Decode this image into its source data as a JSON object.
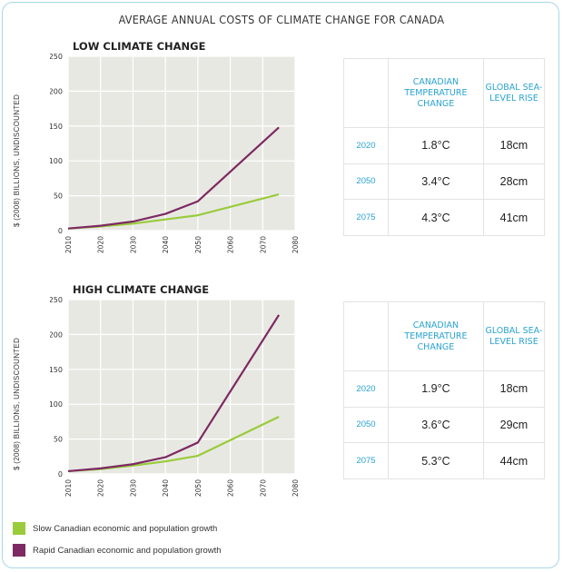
{
  "title": "AVERAGE ANNUAL COSTS OF CLIMATE CHANGE FOR CANADA",
  "y_axis_label": "$ (2008) BILLIONS, UNDISCOUNTED",
  "colors": {
    "slow": "#9acb3c",
    "rapid": "#7d2a62",
    "plot_bg": "#e8e8e3",
    "grid": "#ffffff",
    "accent": "#2aa3d0"
  },
  "legend": {
    "slow": "Slow Canadian economic and population growth",
    "rapid": "Rapid Canadian economic and population growth"
  },
  "chart_data": [
    {
      "type": "line",
      "title": "LOW CLIMATE CHANGE",
      "ylabel": "$ (2008) BILLIONS, UNDISCOUNTED",
      "x_ticks": [
        "2010",
        "2020",
        "2030",
        "2040",
        "2050",
        "2060",
        "2070",
        "2080"
      ],
      "y_ticks": [
        0,
        50,
        100,
        150,
        200,
        250
      ],
      "xlim": [
        2010,
        2080
      ],
      "ylim": [
        0,
        250
      ],
      "grid": true,
      "x": [
        2010,
        2020,
        2030,
        2040,
        2050,
        2075
      ],
      "series": [
        {
          "name": "Slow Canadian economic and population growth",
          "key": "slow",
          "values": [
            3,
            6,
            10,
            16,
            22,
            52
          ]
        },
        {
          "name": "Rapid Canadian economic and population growth",
          "key": "rapid",
          "values": [
            3,
            7,
            13,
            24,
            42,
            148
          ]
        }
      ]
    },
    {
      "type": "line",
      "title": "HIGH CLIMATE CHANGE",
      "ylabel": "$ (2008) BILLIONS, UNDISCOUNTED",
      "x_ticks": [
        "2010",
        "2020",
        "2030",
        "2040",
        "2050",
        "2060",
        "2070",
        "2080"
      ],
      "y_ticks": [
        0,
        50,
        100,
        150,
        200,
        250
      ],
      "xlim": [
        2010,
        2080
      ],
      "ylim": [
        0,
        250
      ],
      "grid": true,
      "x": [
        2010,
        2020,
        2030,
        2040,
        2050,
        2075
      ],
      "series": [
        {
          "name": "Slow Canadian economic and population growth",
          "key": "slow",
          "values": [
            4,
            7,
            12,
            18,
            26,
            82
          ]
        },
        {
          "name": "Rapid Canadian economic and population growth",
          "key": "rapid",
          "values": [
            4,
            8,
            14,
            24,
            45,
            228
          ]
        }
      ]
    }
  ],
  "tables": [
    {
      "header_temp": "CANADIAN TEMPERATURE CHANGE",
      "header_sea": "GLOBAL SEA-LEVEL RISE",
      "rows": [
        {
          "year": "2020",
          "temp": "1.8°C",
          "sea": "18cm"
        },
        {
          "year": "2050",
          "temp": "3.4°C",
          "sea": "28cm"
        },
        {
          "year": "2075",
          "temp": "4.3°C",
          "sea": "41cm"
        }
      ]
    },
    {
      "header_temp": "CANADIAN TEMPERATURE CHANGE",
      "header_sea": "GLOBAL SEA-LEVEL RISE",
      "rows": [
        {
          "year": "2020",
          "temp": "1.9°C",
          "sea": "18cm"
        },
        {
          "year": "2050",
          "temp": "3.6°C",
          "sea": "29cm"
        },
        {
          "year": "2075",
          "temp": "5.3°C",
          "sea": "44cm"
        }
      ]
    }
  ]
}
